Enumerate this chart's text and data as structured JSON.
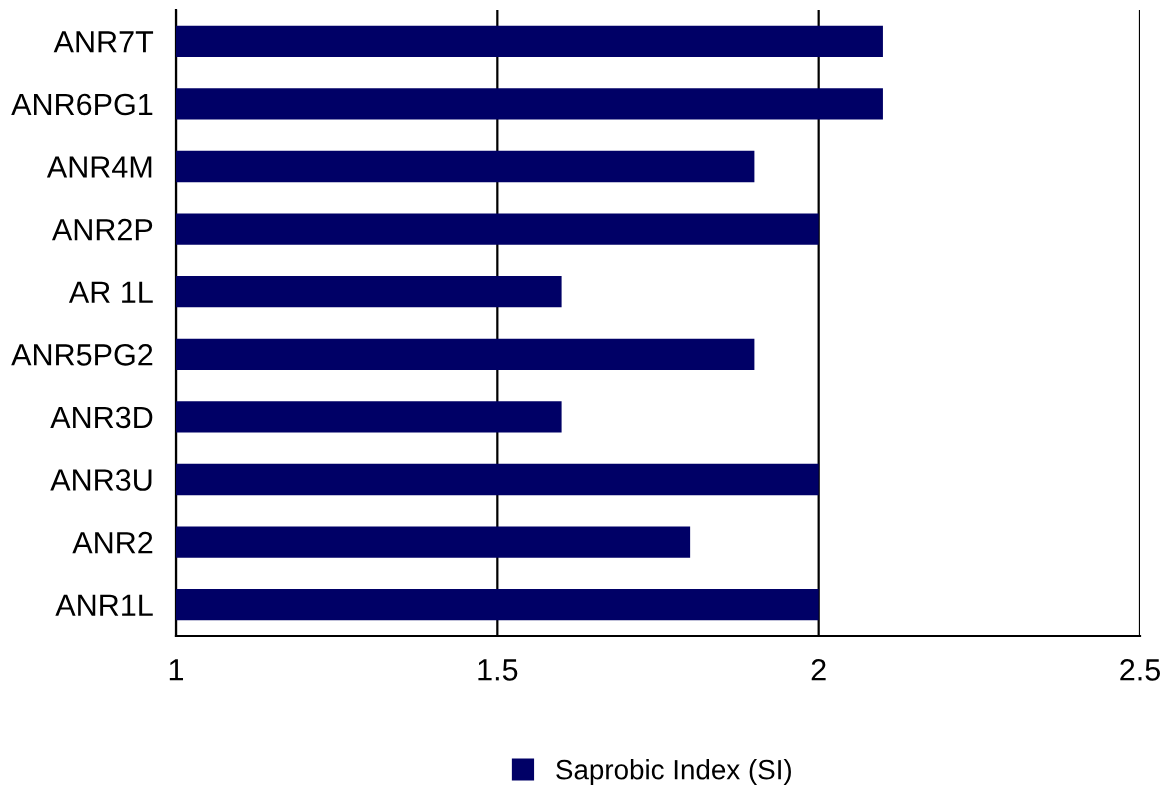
{
  "chart_data": {
    "type": "bar",
    "orientation": "horizontal",
    "categories": [
      "ANR7T",
      "ANR6PG1",
      "ANR4M",
      "ANR2P",
      "AR 1L",
      "ANR5PG2",
      "ANR3D",
      "ANR3U",
      "ANR2",
      "ANR1L"
    ],
    "series": [
      {
        "name": "Saprobic Index (SI)",
        "color": "#000066",
        "values": [
          2.1,
          2.1,
          1.9,
          2.0,
          1.6,
          1.9,
          1.6,
          2.0,
          1.8,
          2.0
        ]
      }
    ],
    "xlim": [
      1,
      2.5
    ],
    "xticks": [
      1,
      1.5,
      2,
      2.5
    ],
    "grid": "x",
    "legend": "bottom"
  }
}
